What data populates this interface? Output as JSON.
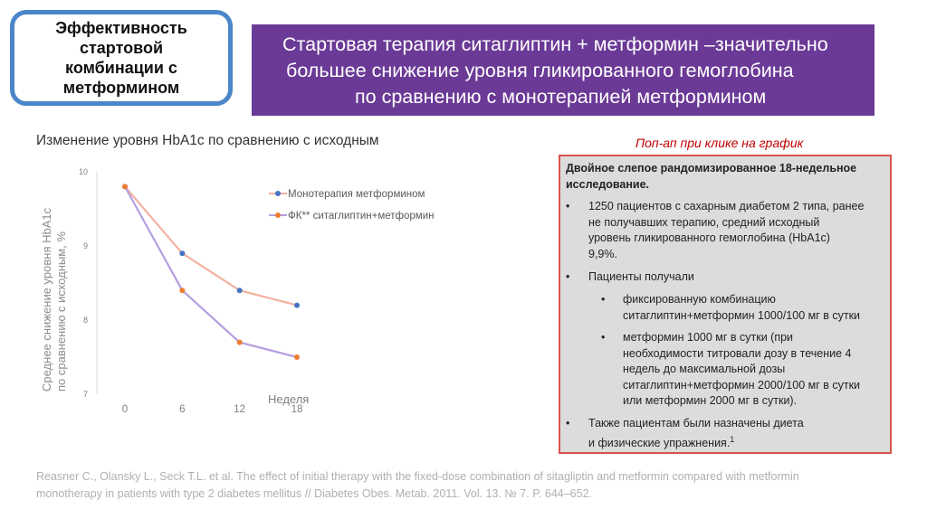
{
  "slide": {
    "box_title": "Эффективность стартовой комбинации с метформином",
    "banner_lines": [
      "Стартовая терапия ситаглиптин + метформин –значительно",
      "большее снижение уровня гликированного гемоглобина",
      "по сравнению с монотерапией метформином"
    ],
    "popup_note": "Поп-ап при клике на график",
    "reference_lines": [
      "Reasner C., Olansky L., Seck T.L. et al. The effect of initial therapy with the fixed-dose combination of sitagliptin and metformin compared with metformin",
      "monotherapy in patients with type 2 diabetes mellitus // Diabetes Obes. Metab. 2011. Vol. 13. № 7. P. 644–652."
    ]
  },
  "info": {
    "heading_lines": [
      "Двойное слепое рандомизированное 18-недельное",
      "исследование."
    ],
    "bullet1_lines": [
      "1250 пациентов с сахарным диабетом 2 типа, ранее",
      "не получавших терапию, средний исходный",
      "уровень гликированного гемоглобина (HbA1c)",
      "9,9%."
    ],
    "bullet2": "Пациенты получали",
    "sub1_lines": [
      "фиксированную комбинацию",
      "ситаглиптин+метформин 1000/100 мг в сутки"
    ],
    "sub2_lines": [
      " метформин 1000 мг в сутки (при",
      "необходимости титровали дозу в течение 4",
      "недель до максимальной дозы",
      "ситаглиптин+метформин  2000/100 мг в сутки",
      "или метформин 2000 мг в сутки)."
    ],
    "bullet3_lines": [
      "Также пациентам были назначены диета",
      "и физические упражнения."
    ],
    "footnote_mark": "1",
    "bullet_glyph": "•"
  },
  "chart_data": {
    "type": "line",
    "title": "Изменение уровня HbA1c  по сравнению с исходным",
    "xlabel": "Неделя",
    "ylabel_lines": [
      "Среднее снижение  уровня HbA1c",
      "по сравнению с исходным, %"
    ],
    "x": [
      0,
      6,
      12,
      18
    ],
    "x_tick_labels": [
      "0",
      "6",
      "12",
      "18"
    ],
    "y_tick_labels": [
      "10",
      "9",
      "8",
      "7"
    ],
    "ylim": [
      7,
      10
    ],
    "grid": false,
    "legend_position": "top-right",
    "series": [
      {
        "name": "Монотерапия метформином",
        "values": [
          9.8,
          8.9,
          8.4,
          8.2
        ],
        "line_color": "#f4b1a0",
        "marker_color": "#4472c4"
      },
      {
        "name": "ФК** ситаглиптин+метформин",
        "values": [
          9.8,
          8.4,
          7.7,
          7.5
        ],
        "line_color": "#b49fe0",
        "marker_color": "#ed7d31"
      }
    ]
  }
}
